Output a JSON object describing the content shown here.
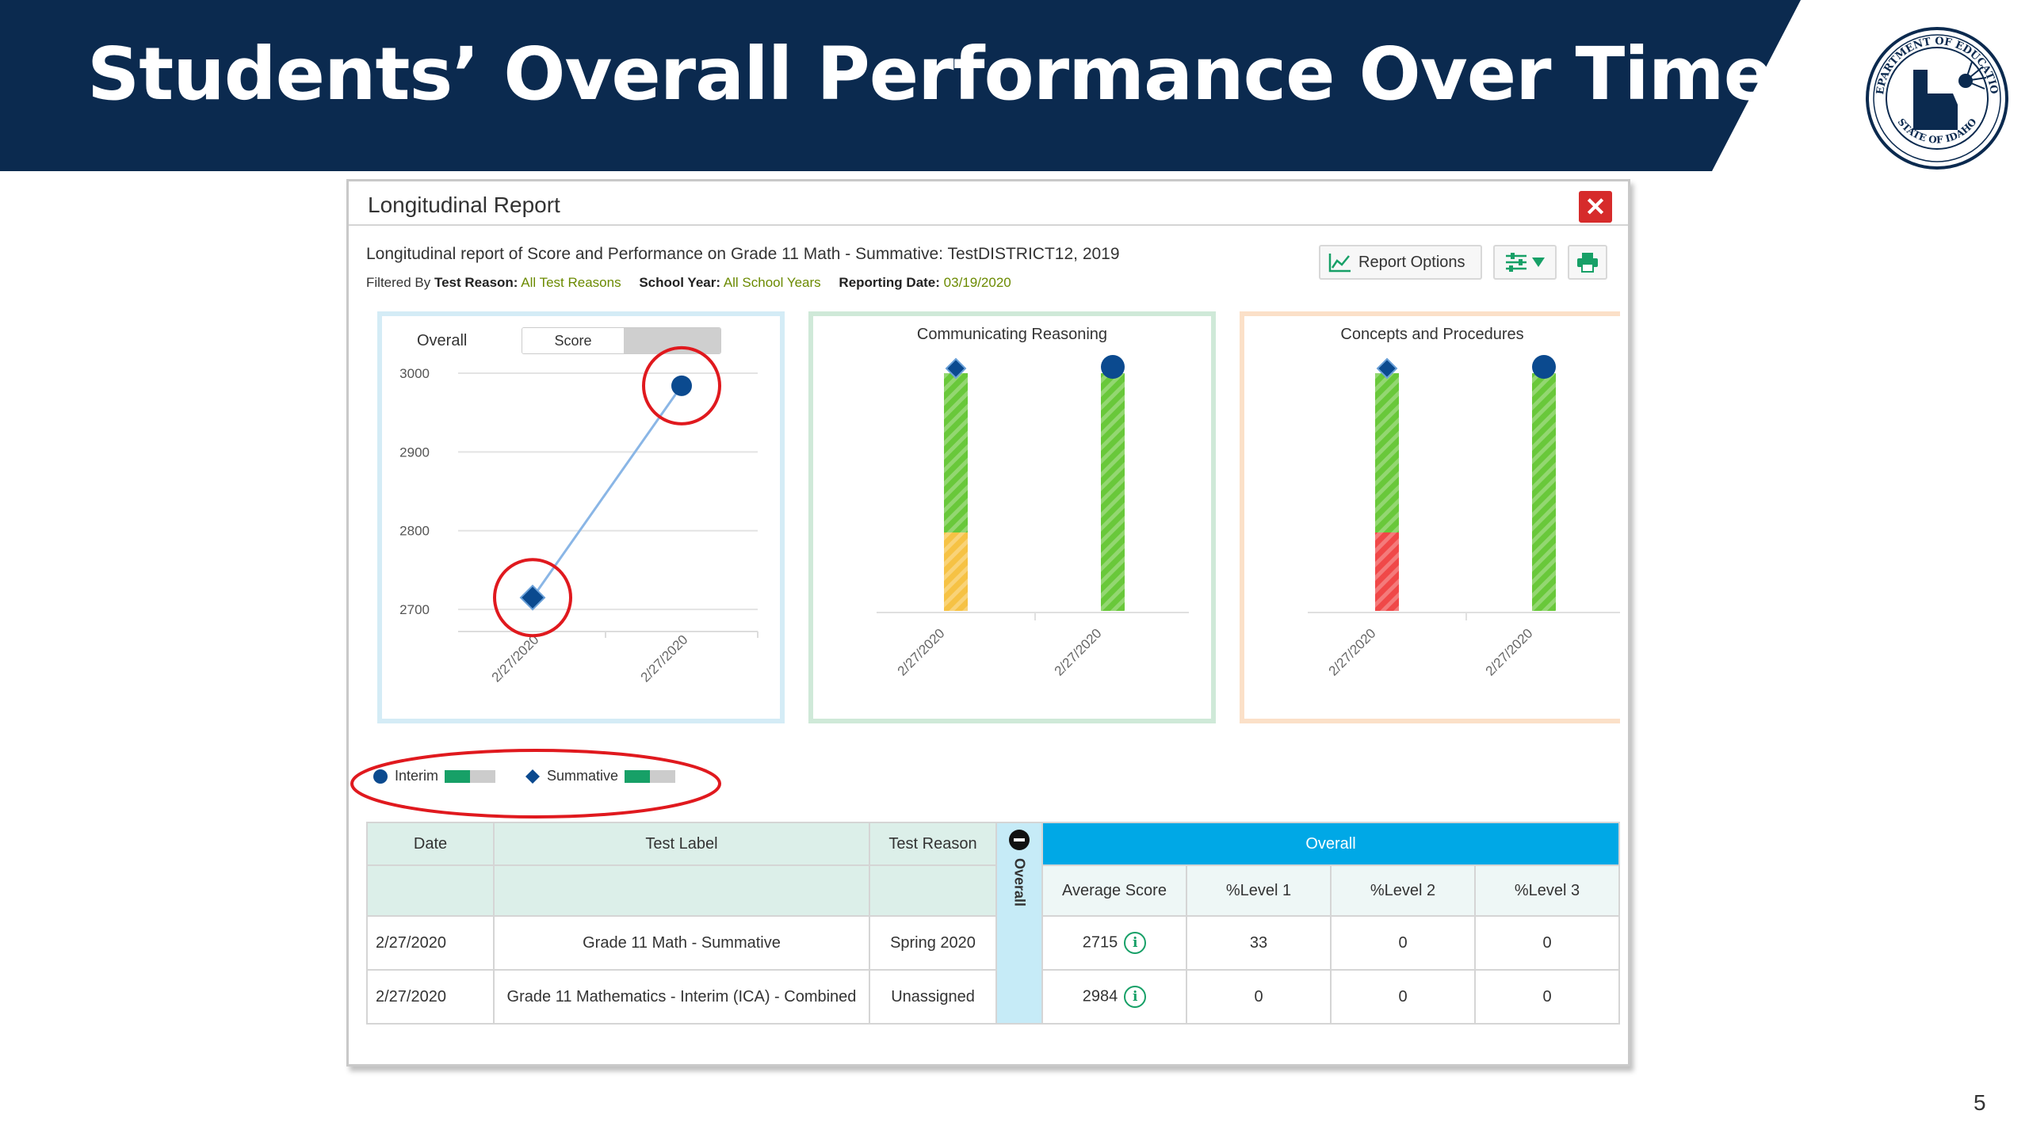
{
  "slide": {
    "title": "Students’ Overall Performance Over Time",
    "page_number": "5",
    "seal_text_top": "DEPARTMENT OF EDUCATION",
    "seal_text_bottom": "STATE OF IDAHO",
    "banner_color": "#0b2a4f"
  },
  "report": {
    "title": "Longitudinal Report",
    "close_icon": "close-icon",
    "description": "Longitudinal report of Score and Performance on Grade 11 Math - Summative: TestDISTRICT12, 2019",
    "filters": {
      "prefix": "Filtered By",
      "test_reason_label": "Test Reason:",
      "test_reason_value": "All Test Reasons",
      "school_year_label": "School Year:",
      "school_year_value": "All School Years",
      "reporting_date_label": "Reporting Date:",
      "reporting_date_value": "03/19/2020"
    },
    "toolbar": {
      "report_options_label": "Report Options",
      "report_options_icon": "line-chart-icon",
      "settings_icon": "sliders-icon",
      "print_icon": "printer-icon"
    }
  },
  "overall_card": {
    "label": "Overall",
    "toggle_label": "Score"
  },
  "chart_data": [
    {
      "type": "line",
      "title": "Overall",
      "x": [
        "2/27/2020",
        "2/27/2020"
      ],
      "series": [
        {
          "name": "Summative",
          "marker": "diamond",
          "values": [
            2715,
            null
          ]
        },
        {
          "name": "Interim",
          "marker": "circle",
          "values": [
            null,
            2984
          ]
        }
      ],
      "yticks": [
        2700,
        2800,
        2900,
        3000
      ],
      "ylim": [
        2680,
        3010
      ],
      "grid": true,
      "highlight": "red circles around both data points"
    },
    {
      "type": "bar",
      "title": "Communicating Reasoning",
      "categories": [
        "2/27/2020",
        "2/27/2020"
      ],
      "markers": [
        "diamond",
        "circle"
      ],
      "stacks": [
        [
          {
            "color": "#f6c244",
            "fraction": 0.33
          },
          {
            "color": "#69c83a",
            "fraction": 0.67
          }
        ],
        [
          {
            "color": "#69c83a",
            "fraction": 1.0
          }
        ]
      ]
    },
    {
      "type": "bar",
      "title": "Concepts and Procedures",
      "categories": [
        "2/27/2020",
        "2/27/2020"
      ],
      "markers": [
        "diamond",
        "circle"
      ],
      "stacks": [
        [
          {
            "color": "#f04848",
            "fraction": 0.33
          },
          {
            "color": "#69c83a",
            "fraction": 0.67
          }
        ],
        [
          {
            "color": "#69c83a",
            "fraction": 1.0
          }
        ]
      ]
    }
  ],
  "legend": {
    "items": [
      {
        "label": "Interim",
        "icon": "circle-icon"
      },
      {
        "label": "Summative",
        "icon": "diamond-icon"
      }
    ]
  },
  "table": {
    "headers": {
      "date": "Date",
      "test_label": "Test Label",
      "test_reason": "Test Reason",
      "vertical": "Overall",
      "group": "Overall"
    },
    "subheaders": [
      "Average Score",
      "%Level 1",
      "%Level 2",
      "%Level 3"
    ],
    "rows": [
      {
        "date": "2/27/2020",
        "test_label": "Grade 11 Math - Summative",
        "test_reason": "Spring 2020",
        "avg": "2715",
        "l1": "33",
        "l2": "0",
        "l3": "0"
      },
      {
        "date": "2/27/2020",
        "test_label": "Grade 11 Mathematics - Interim (ICA) - Combined",
        "test_reason": "Unassigned",
        "avg": "2984",
        "l1": "0",
        "l2": "0",
        "l3": "0"
      }
    ]
  }
}
